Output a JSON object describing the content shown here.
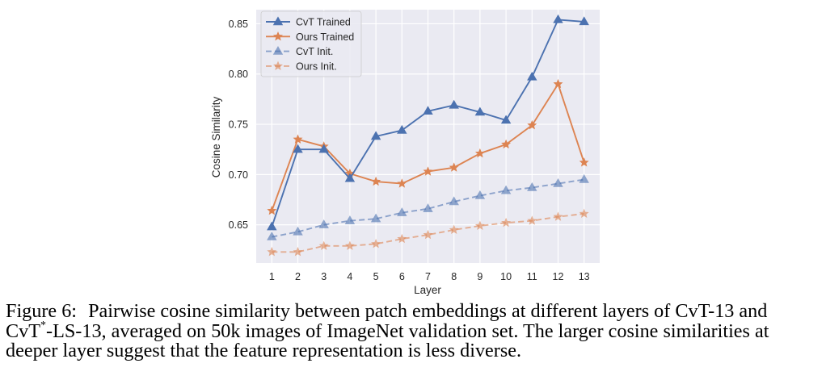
{
  "chart_data": {
    "type": "line",
    "title": "",
    "xlabel": "Layer",
    "ylabel": "Cosine Similarity",
    "x": [
      1,
      2,
      3,
      4,
      5,
      6,
      7,
      8,
      9,
      10,
      11,
      12,
      13
    ],
    "x_tick_labels": [
      "1",
      "2",
      "3",
      "4",
      "5",
      "6",
      "7",
      "8",
      "9",
      "10",
      "11",
      "12",
      "13"
    ],
    "y_ticks": [
      0.65,
      0.7,
      0.75,
      0.8,
      0.85
    ],
    "y_tick_labels": [
      "0.65",
      "0.70",
      "0.75",
      "0.80",
      "0.85"
    ],
    "xlim": [
      0.4,
      13.6
    ],
    "ylim": [
      0.612,
      0.864
    ],
    "grid": true,
    "legend_position": "top-left",
    "series": [
      {
        "name": "CvT Trained",
        "color": "#4c72b0",
        "style": "solid",
        "marker": "triangle",
        "values": [
          0.648,
          0.725,
          0.725,
          0.696,
          0.738,
          0.744,
          0.763,
          0.769,
          0.762,
          0.754,
          0.797,
          0.854,
          0.852
        ]
      },
      {
        "name": "Ours Trained",
        "color": "#dd8452",
        "style": "solid",
        "marker": "star",
        "values": [
          0.664,
          0.735,
          0.728,
          0.701,
          0.693,
          0.691,
          0.703,
          0.707,
          0.721,
          0.73,
          0.749,
          0.79,
          0.712
        ]
      },
      {
        "name": "CvT Init.",
        "color": "#4c72b0",
        "style": "dashed",
        "marker": "triangle",
        "values": [
          0.638,
          0.643,
          0.65,
          0.654,
          0.656,
          0.662,
          0.666,
          0.673,
          0.679,
          0.684,
          0.687,
          0.691,
          0.695
        ]
      },
      {
        "name": "Ours Init.",
        "color": "#dd8452",
        "style": "dashed",
        "marker": "star",
        "values": [
          0.623,
          0.623,
          0.629,
          0.629,
          0.631,
          0.636,
          0.64,
          0.645,
          0.649,
          0.652,
          0.654,
          0.658,
          0.661
        ]
      }
    ],
    "colors": {
      "plot_background": "#eaeaf2",
      "grid": "#ffffff",
      "text": "#262626"
    }
  },
  "caption": {
    "label": "Figure 6:",
    "line1": "Pairwise cosine similarity between patch embeddings at different layers of CvT-13 and",
    "line2_pre": "CvT",
    "line2_sup": "*",
    "line2_post": "-LS-13, averaged on 50k images of ImageNet validation set. The larger cosine similarities at",
    "line3": "deeper layer suggest that the feature representation is less diverse."
  }
}
